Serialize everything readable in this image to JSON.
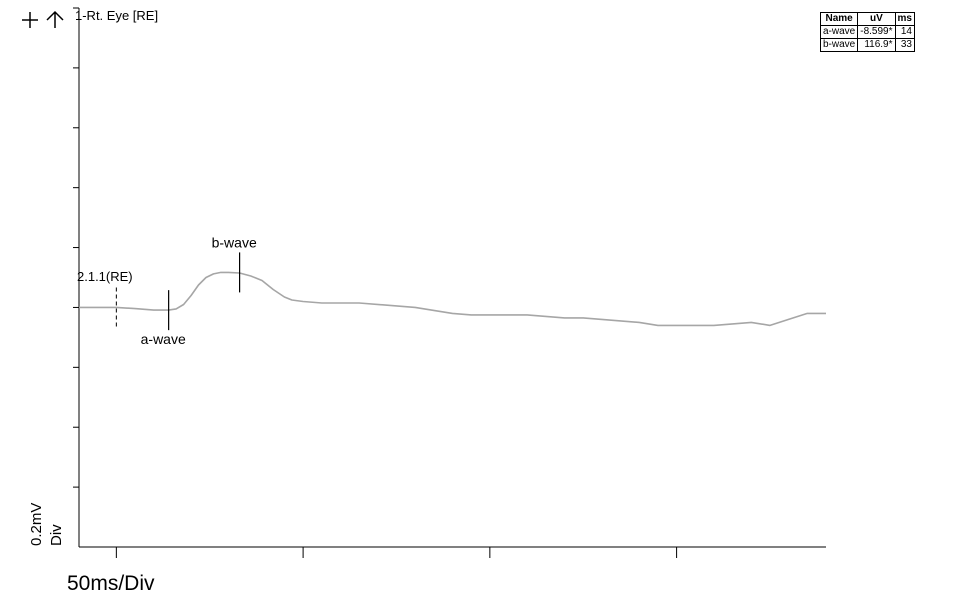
{
  "toolbar": {
    "cursor_icon": "crosshair-icon",
    "arrow_icon": "up-arrow-icon"
  },
  "chart_data": {
    "type": "line",
    "channel_label": "1-Rt. Eye [RE]",
    "trace_label": "2.1.1(RE)",
    "xlabel": "50ms/Div",
    "ylabel_line1": "0.2mV",
    "ylabel_line2": "Div",
    "x_unit": "ms",
    "y_unit": "uV",
    "xlim": [
      -10,
      190
    ],
    "ylim": [
      -800,
      1000
    ],
    "trace_color": "#a6a6a6",
    "series": [
      {
        "x": [
          -10,
          0,
          5,
          10,
          14,
          16,
          18,
          20,
          22,
          24,
          26,
          28,
          30,
          33,
          36,
          39,
          42,
          45,
          47,
          50,
          55,
          60,
          65,
          75,
          80,
          85,
          90,
          95,
          100,
          110,
          120,
          125,
          130,
          140,
          145,
          150,
          160,
          170,
          175,
          180,
          185,
          190
        ],
        "y": [
          0,
          0,
          -4,
          -9,
          -9,
          -5,
          10,
          40,
          75,
          100,
          112,
          117,
          117,
          115,
          105,
          90,
          60,
          35,
          25,
          20,
          15,
          15,
          15,
          5,
          0,
          -10,
          -20,
          -25,
          -25,
          -25,
          -35,
          -35,
          -40,
          -50,
          -60,
          -60,
          -60,
          -50,
          -60,
          -40,
          -20,
          -20
        ]
      }
    ],
    "markers": [
      {
        "name": "a-wave",
        "x": 14,
        "y": -9
      },
      {
        "name": "b-wave",
        "x": 33,
        "y": 117
      }
    ]
  },
  "results_table": {
    "headers": [
      "Name",
      "uV",
      "ms"
    ],
    "rows": [
      [
        "a-wave",
        "-8.599*",
        "14"
      ],
      [
        "b-wave",
        "116.9*",
        "33"
      ]
    ]
  }
}
